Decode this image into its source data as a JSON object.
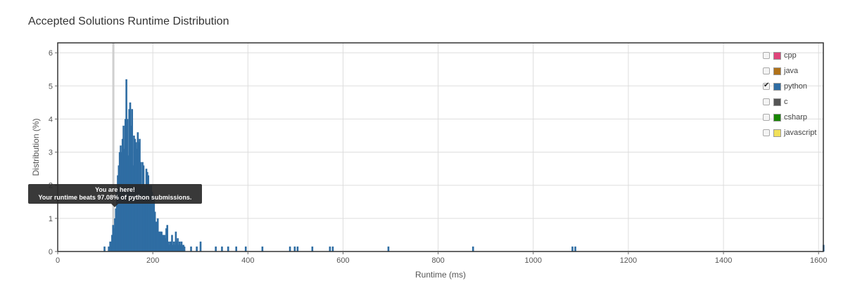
{
  "chart_data": {
    "type": "bar",
    "title": "Accepted Solutions Runtime Distribution",
    "xlabel": "Runtime (ms)",
    "ylabel": "Distribution (%)",
    "xlim": [
      0,
      1610
    ],
    "ylim": [
      0,
      6.3
    ],
    "x_ticks": [
      0,
      200,
      400,
      600,
      800,
      1000,
      1200,
      1400,
      1600
    ],
    "y_ticks": [
      0,
      1,
      2,
      3,
      4,
      5,
      6
    ],
    "grid": true,
    "legend_position": "top-right",
    "active_series": "python",
    "user_marker_x": 117,
    "series": [
      {
        "name": "python",
        "color": "#2f6da3",
        "points": [
          [
            98,
            0.15
          ],
          [
            107,
            0.15
          ],
          [
            110,
            0.3
          ],
          [
            112,
            0.3
          ],
          [
            114,
            0.5
          ],
          [
            116,
            0.8
          ],
          [
            118,
            0.7
          ],
          [
            120,
            1.0
          ],
          [
            122,
            1.3
          ],
          [
            124,
            1.8
          ],
          [
            126,
            2.3
          ],
          [
            128,
            2.6
          ],
          [
            130,
            3.0
          ],
          [
            132,
            3.2
          ],
          [
            134,
            3.0
          ],
          [
            136,
            3.4
          ],
          [
            138,
            3.8
          ],
          [
            140,
            3.1
          ],
          [
            142,
            4.0
          ],
          [
            144,
            5.2
          ],
          [
            146,
            4.0
          ],
          [
            148,
            2.9
          ],
          [
            150,
            4.3
          ],
          [
            152,
            4.5
          ],
          [
            154,
            3.8
          ],
          [
            156,
            4.3
          ],
          [
            158,
            2.6
          ],
          [
            160,
            3.5
          ],
          [
            162,
            3.4
          ],
          [
            164,
            3.3
          ],
          [
            166,
            3.1
          ],
          [
            168,
            3.6
          ],
          [
            170,
            3.3
          ],
          [
            172,
            3.4
          ],
          [
            174,
            2.7
          ],
          [
            176,
            2.0
          ],
          [
            178,
            2.7
          ],
          [
            180,
            2.6
          ],
          [
            182,
            2.0
          ],
          [
            184,
            1.9
          ],
          [
            186,
            2.5
          ],
          [
            188,
            2.4
          ],
          [
            190,
            2.3
          ],
          [
            192,
            2.0
          ],
          [
            194,
            1.6
          ],
          [
            196,
            2.0
          ],
          [
            198,
            1.8
          ],
          [
            200,
            1.5
          ],
          [
            202,
            1.7
          ],
          [
            204,
            1.2
          ],
          [
            206,
            0.9
          ],
          [
            208,
            0.9
          ],
          [
            210,
            1.0
          ],
          [
            212,
            0.6
          ],
          [
            214,
            0.6
          ],
          [
            216,
            0.6
          ],
          [
            218,
            0.6
          ],
          [
            220,
            0.5
          ],
          [
            222,
            0.5
          ],
          [
            224,
            0.5
          ],
          [
            226,
            0.4
          ],
          [
            228,
            0.7
          ],
          [
            230,
            0.8
          ],
          [
            232,
            0.3
          ],
          [
            234,
            0.2
          ],
          [
            236,
            0.3
          ],
          [
            238,
            0.3
          ],
          [
            240,
            0.5
          ],
          [
            242,
            0.2
          ],
          [
            244,
            0.3
          ],
          [
            246,
            0.2
          ],
          [
            248,
            0.6
          ],
          [
            250,
            0.3
          ],
          [
            252,
            0.4
          ],
          [
            254,
            0.2
          ],
          [
            256,
            0.3
          ],
          [
            258,
            0.2
          ],
          [
            260,
            0.3
          ],
          [
            262,
            0.2
          ],
          [
            264,
            0.2
          ],
          [
            266,
            0.15
          ],
          [
            280,
            0.15
          ],
          [
            292,
            0.15
          ],
          [
            300,
            0.3
          ],
          [
            332,
            0.15
          ],
          [
            345,
            0.15
          ],
          [
            358,
            0.15
          ],
          [
            375,
            0.15
          ],
          [
            395,
            0.15
          ],
          [
            430,
            0.15
          ],
          [
            488,
            0.15
          ],
          [
            498,
            0.15
          ],
          [
            504,
            0.15
          ],
          [
            535,
            0.15
          ],
          [
            572,
            0.15
          ],
          [
            578,
            0.15
          ],
          [
            695,
            0.15
          ],
          [
            873,
            0.15
          ],
          [
            1082,
            0.15
          ],
          [
            1088,
            0.15
          ],
          [
            1610,
            0.2
          ]
        ]
      }
    ]
  },
  "legend": [
    {
      "label": "cpp",
      "color": "#e0457b",
      "checked": false
    },
    {
      "label": "java",
      "color": "#b07219",
      "checked": false
    },
    {
      "label": "python",
      "color": "#2f6da3",
      "checked": true
    },
    {
      "label": "c",
      "color": "#555555",
      "checked": false
    },
    {
      "label": "csharp",
      "color": "#178600",
      "checked": false
    },
    {
      "label": "javascript",
      "color": "#f1e05a",
      "checked": false
    }
  ],
  "tooltip": {
    "line1": "You are here!",
    "line2": "Your runtime beats 97.08% of python submissions."
  }
}
